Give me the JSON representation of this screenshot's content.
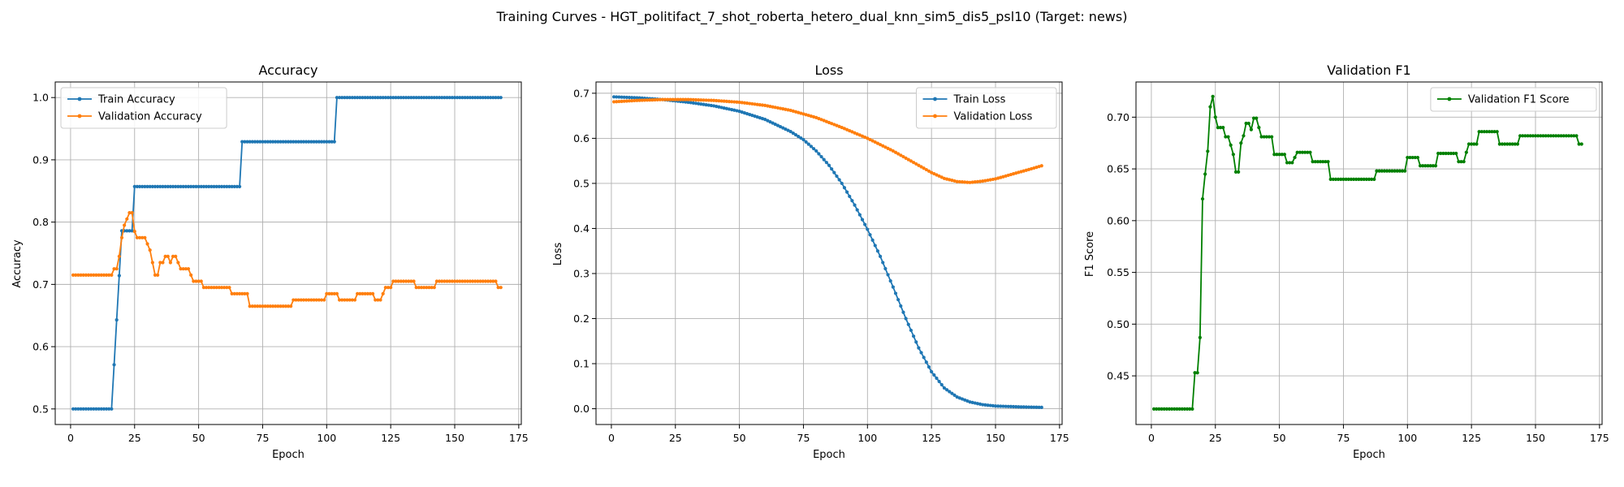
{
  "suptitle": "Training Curves - HGT_politifact_7_shot_roberta_hetero_dual_knn_sim5_dis5_psl10 (Target: news)",
  "colors": {
    "train": "#1f77b4",
    "validation": "#ff7f0e",
    "f1": "#008000"
  },
  "chart_data": [
    {
      "type": "line",
      "title": "Accuracy",
      "xlabel": "Epoch",
      "ylabel": "Accuracy",
      "xlim": [
        -6,
        176
      ],
      "ylim": [
        0.475,
        1.025
      ],
      "xticks": [
        0,
        25,
        50,
        75,
        100,
        125,
        150,
        175
      ],
      "yticks": [
        0.5,
        0.6,
        0.7,
        0.8,
        0.9,
        1.0
      ],
      "ytick_labels": [
        "0.5",
        "0.6",
        "0.7",
        "0.8",
        "0.9",
        "1.0"
      ],
      "grid": true,
      "legend_position": "top-left",
      "series": [
        {
          "name": "Train Accuracy",
          "color_key": "train",
          "points": [
            [
              1,
              0.5
            ],
            [
              16,
              0.5
            ],
            [
              17,
              0.571
            ],
            [
              18,
              0.643
            ],
            [
              19,
              0.714
            ],
            [
              20,
              0.786
            ],
            [
              24,
              0.786
            ],
            [
              25,
              0.857
            ],
            [
              66,
              0.857
            ],
            [
              67,
              0.929
            ],
            [
              103,
              0.929
            ],
            [
              104,
              1.0
            ],
            [
              168,
              1.0
            ]
          ]
        },
        {
          "name": "Validation Accuracy",
          "color_key": "validation",
          "points": [
            [
              1,
              0.715
            ],
            [
              16,
              0.715
            ],
            [
              17,
              0.725
            ],
            [
              18,
              0.725
            ],
            [
              19,
              0.745
            ],
            [
              20,
              0.775
            ],
            [
              21,
              0.795
            ],
            [
              22,
              0.805
            ],
            [
              23,
              0.815
            ],
            [
              24,
              0.815
            ],
            [
              25,
              0.785
            ],
            [
              26,
              0.775
            ],
            [
              29,
              0.775
            ],
            [
              30,
              0.765
            ],
            [
              31,
              0.755
            ],
            [
              32,
              0.735
            ],
            [
              33,
              0.715
            ],
            [
              34,
              0.715
            ],
            [
              35,
              0.735
            ],
            [
              36,
              0.735
            ],
            [
              37,
              0.745
            ],
            [
              38,
              0.745
            ],
            [
              39,
              0.735
            ],
            [
              40,
              0.745
            ],
            [
              41,
              0.745
            ],
            [
              42,
              0.735
            ],
            [
              43,
              0.725
            ],
            [
              46,
              0.725
            ],
            [
              47,
              0.715
            ],
            [
              48,
              0.705
            ],
            [
              51,
              0.705
            ],
            [
              52,
              0.695
            ],
            [
              62,
              0.695
            ],
            [
              63,
              0.685
            ],
            [
              69,
              0.685
            ],
            [
              70,
              0.665
            ],
            [
              86,
              0.665
            ],
            [
              87,
              0.675
            ],
            [
              99,
              0.675
            ],
            [
              100,
              0.685
            ],
            [
              104,
              0.685
            ],
            [
              105,
              0.675
            ],
            [
              111,
              0.675
            ],
            [
              112,
              0.685
            ],
            [
              118,
              0.685
            ],
            [
              119,
              0.675
            ],
            [
              121,
              0.675
            ],
            [
              122,
              0.685
            ],
            [
              123,
              0.695
            ],
            [
              125,
              0.695
            ],
            [
              126,
              0.705
            ],
            [
              134,
              0.705
            ],
            [
              135,
              0.695
            ],
            [
              142,
              0.695
            ],
            [
              143,
              0.705
            ],
            [
              166,
              0.705
            ],
            [
              167,
              0.695
            ],
            [
              168,
              0.695
            ]
          ]
        }
      ]
    },
    {
      "type": "line",
      "title": "Loss",
      "xlabel": "Epoch",
      "ylabel": "Loss",
      "xlim": [
        -6,
        176
      ],
      "ylim": [
        -0.035,
        0.725
      ],
      "xticks": [
        0,
        25,
        50,
        75,
        100,
        125,
        150,
        175
      ],
      "yticks": [
        0.0,
        0.1,
        0.2,
        0.3,
        0.4,
        0.5,
        0.6,
        0.7
      ],
      "ytick_labels": [
        "0.0",
        "0.1",
        "0.2",
        "0.3",
        "0.4",
        "0.5",
        "0.6",
        "0.7"
      ],
      "grid": true,
      "legend_position": "top-right",
      "series": [
        {
          "name": "Train Loss",
          "color_key": "train",
          "points": [
            [
              1,
              0.692
            ],
            [
              10,
              0.69
            ],
            [
              20,
              0.686
            ],
            [
              30,
              0.68
            ],
            [
              40,
              0.672
            ],
            [
              50,
              0.66
            ],
            [
              60,
              0.642
            ],
            [
              70,
              0.615
            ],
            [
              75,
              0.597
            ],
            [
              80,
              0.572
            ],
            [
              85,
              0.54
            ],
            [
              90,
              0.5
            ],
            [
              95,
              0.452
            ],
            [
              100,
              0.398
            ],
            [
              105,
              0.338
            ],
            [
              110,
              0.27
            ],
            [
              115,
              0.2
            ],
            [
              120,
              0.135
            ],
            [
              125,
              0.082
            ],
            [
              130,
              0.046
            ],
            [
              135,
              0.026
            ],
            [
              140,
              0.015
            ],
            [
              145,
              0.009
            ],
            [
              150,
              0.006
            ],
            [
              160,
              0.004
            ],
            [
              168,
              0.003
            ]
          ]
        },
        {
          "name": "Validation Loss",
          "color_key": "validation",
          "points": [
            [
              1,
              0.681
            ],
            [
              10,
              0.684
            ],
            [
              20,
              0.686
            ],
            [
              30,
              0.686
            ],
            [
              40,
              0.684
            ],
            [
              50,
              0.68
            ],
            [
              60,
              0.673
            ],
            [
              70,
              0.662
            ],
            [
              80,
              0.646
            ],
            [
              90,
              0.624
            ],
            [
              100,
              0.6
            ],
            [
              110,
              0.572
            ],
            [
              120,
              0.54
            ],
            [
              125,
              0.524
            ],
            [
              130,
              0.511
            ],
            [
              135,
              0.504
            ],
            [
              140,
              0.502
            ],
            [
              145,
              0.505
            ],
            [
              150,
              0.51
            ],
            [
              155,
              0.518
            ],
            [
              160,
              0.526
            ],
            [
              165,
              0.534
            ],
            [
              168,
              0.539
            ]
          ]
        }
      ]
    },
    {
      "type": "line",
      "title": "Validation F1",
      "xlabel": "Epoch",
      "ylabel": "F1 Score",
      "xlim": [
        -6,
        176
      ],
      "ylim": [
        0.403,
        0.734
      ],
      "xticks": [
        0,
        25,
        50,
        75,
        100,
        125,
        150,
        175
      ],
      "yticks": [
        0.45,
        0.5,
        0.55,
        0.6,
        0.65,
        0.7
      ],
      "ytick_labels": [
        "0.45",
        "0.50",
        "0.55",
        "0.60",
        "0.65",
        "0.70"
      ],
      "grid": true,
      "legend_position": "top-right",
      "series": [
        {
          "name": "Validation F1 Score",
          "color_key": "f1",
          "points": [
            [
              1,
              0.418
            ],
            [
              16,
              0.418
            ],
            [
              17,
              0.453
            ],
            [
              18,
              0.453
            ],
            [
              19,
              0.487
            ],
            [
              20,
              0.621
            ],
            [
              21,
              0.645
            ],
            [
              22,
              0.667
            ],
            [
              23,
              0.71
            ],
            [
              24,
              0.72
            ],
            [
              25,
              0.7
            ],
            [
              26,
              0.69
            ],
            [
              28,
              0.69
            ],
            [
              29,
              0.681
            ],
            [
              30,
              0.681
            ],
            [
              31,
              0.673
            ],
            [
              32,
              0.664
            ],
            [
              33,
              0.647
            ],
            [
              34,
              0.647
            ],
            [
              35,
              0.675
            ],
            [
              36,
              0.682
            ],
            [
              37,
              0.694
            ],
            [
              38,
              0.694
            ],
            [
              39,
              0.688
            ],
            [
              40,
              0.699
            ],
            [
              41,
              0.699
            ],
            [
              42,
              0.69
            ],
            [
              43,
              0.681
            ],
            [
              47,
              0.681
            ],
            [
              48,
              0.664
            ],
            [
              52,
              0.664
            ],
            [
              53,
              0.656
            ],
            [
              55,
              0.656
            ],
            [
              56,
              0.661
            ],
            [
              57,
              0.666
            ],
            [
              62,
              0.666
            ],
            [
              63,
              0.657
            ],
            [
              69,
              0.657
            ],
            [
              70,
              0.64
            ],
            [
              87,
              0.64
            ],
            [
              88,
              0.648
            ],
            [
              99,
              0.648
            ],
            [
              100,
              0.661
            ],
            [
              104,
              0.661
            ],
            [
              105,
              0.653
            ],
            [
              111,
              0.653
            ],
            [
              112,
              0.665
            ],
            [
              119,
              0.665
            ],
            [
              120,
              0.657
            ],
            [
              122,
              0.657
            ],
            [
              123,
              0.666
            ],
            [
              124,
              0.674
            ],
            [
              127,
              0.674
            ],
            [
              128,
              0.686
            ],
            [
              135,
              0.686
            ],
            [
              136,
              0.674
            ],
            [
              143,
              0.674
            ],
            [
              144,
              0.682
            ],
            [
              166,
              0.682
            ],
            [
              167,
              0.674
            ],
            [
              168,
              0.674
            ]
          ]
        }
      ]
    }
  ]
}
